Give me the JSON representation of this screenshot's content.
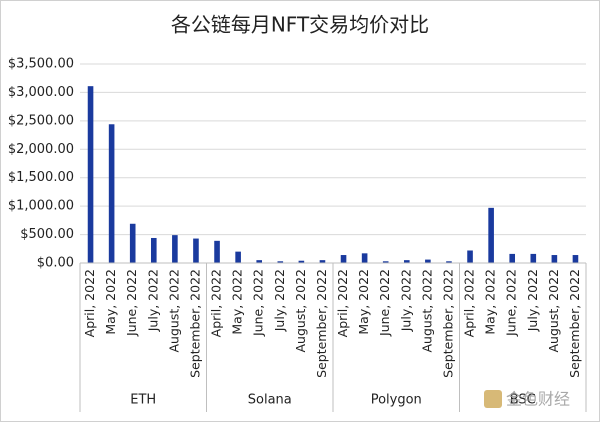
{
  "chart_data": {
    "type": "bar",
    "title": "各公链每月NFT交易均价对比",
    "color": "#1a3a9e",
    "grid": true,
    "ylim": [
      0,
      3500
    ],
    "yticks": [
      {
        "value": 0,
        "label": "$0.00"
      },
      {
        "value": 500,
        "label": "$500.00"
      },
      {
        "value": 1000,
        "label": "$1,000.00"
      },
      {
        "value": 1500,
        "label": "$1,500.00"
      },
      {
        "value": 2000,
        "label": "$2,000.00"
      },
      {
        "value": 2500,
        "label": "$2,500.00"
      },
      {
        "value": 3000,
        "label": "$3,000.00"
      },
      {
        "value": 3500,
        "label": "$3,500.00"
      }
    ],
    "groups": [
      {
        "name": "ETH",
        "categories": [
          "April, 2022",
          "May, 2022",
          "June, 2022",
          "July, 2022",
          "August, 2022",
          "September, 2022"
        ],
        "values": [
          3110,
          2440,
          690,
          440,
          490,
          430
        ]
      },
      {
        "name": "Solana",
        "categories": [
          "April, 2022",
          "May, 2022",
          "June, 2022",
          "July, 2022",
          "August, 2022",
          "September, 2022"
        ],
        "values": [
          390,
          200,
          50,
          30,
          40,
          50
        ]
      },
      {
        "name": "Polygon",
        "categories": [
          "April, 2022",
          "May, 2022",
          "June, 2022",
          "July, 2022",
          "August, 2022",
          "September, 2022"
        ],
        "values": [
          140,
          170,
          30,
          50,
          60,
          30
        ]
      },
      {
        "name": "BSC",
        "categories": [
          "April, 2022",
          "May, 2022",
          "June, 2022",
          "July, 2022",
          "August, 2022",
          "September, 2022"
        ],
        "values": [
          220,
          970,
          160,
          160,
          140,
          140
        ]
      }
    ],
    "watermark": "金色财经"
  }
}
